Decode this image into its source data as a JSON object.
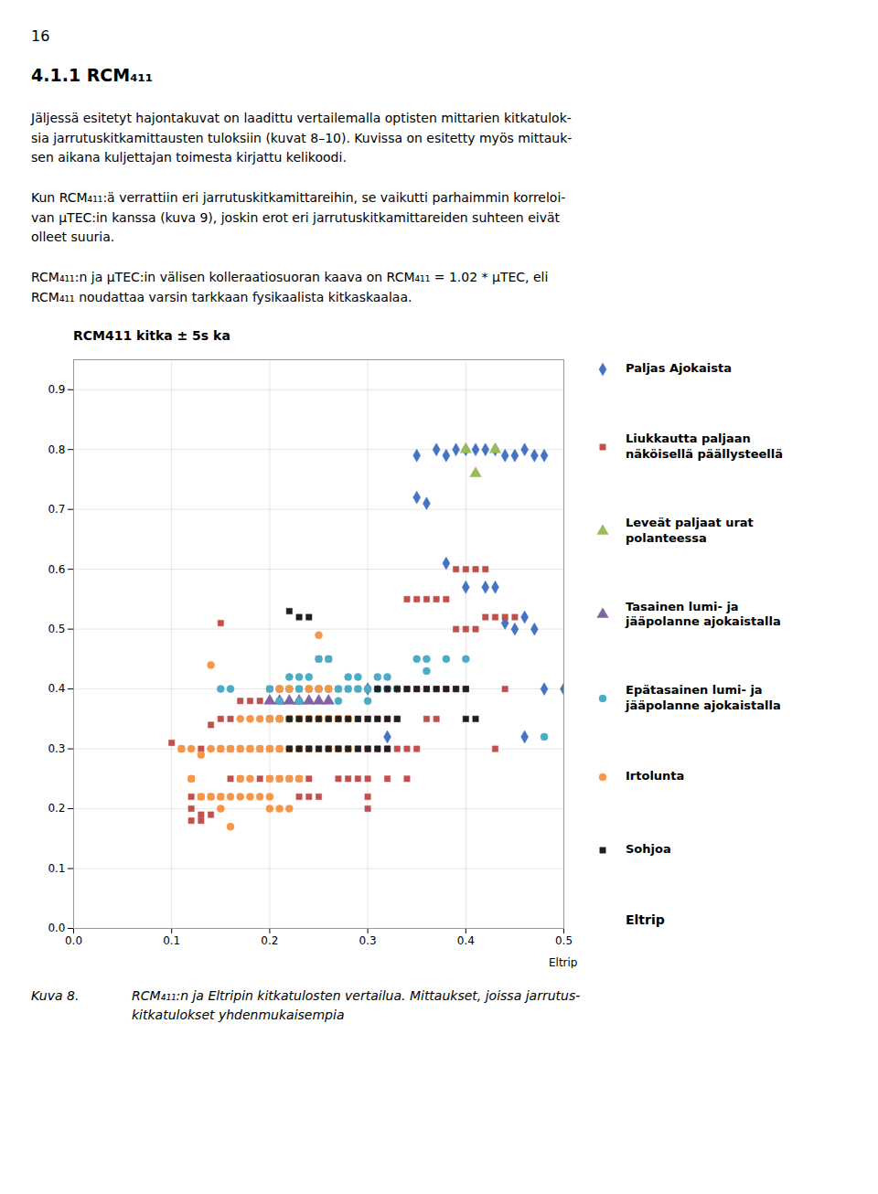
{
  "page": {
    "page_number": "16",
    "section_title": "4.1.1   RCM₄₁₁",
    "paragraphs": [
      "Jäljessä esitetyt hajontakuvat on laadittu vertailemalla optisten mittarien kitkatulok-\nsia jarrutuskitkamittausten tuloksiin (kuvat 8–10). Kuvissa on esitetty myös mittauk-\nsen aikana kuljettajan toimesta kirjattu kelikoodi.",
      "Kun RCM₄₁₁:ä verrattiin eri jarrutuskitkamittareihin, se vaikutti parhaimmin korreloi-\nvan μTEC:in kanssa (kuva 9), joskin erot eri jarrutuskitkamittareiden suhteen eivät\nolleet suuria.",
      "RCM₄₁₁:n ja μTEC:in välisen kolleraatiosuoran kaava on RCM₄₁₁ = 1.02 * μTEC, eli\nRCM₄₁₁ noudattaa varsin tarkkaan fysikaalista kitkaskaalaa."
    ],
    "caption_label": "Kuva 8.",
    "caption_text": "RCM₄₁₁:n  ja Eltripin kitkatulosten vertailua. Mittaukset, joissa jarrutus-\nkitkatulokset yhdenmukaisempia"
  },
  "chart_data": {
    "type": "scatter",
    "title": "RCM411 kitka ± 5s ka",
    "xlabel": "Eltrip",
    "xlim": [
      0,
      0.5
    ],
    "ylim": [
      0,
      0.95
    ],
    "xticks": [
      {
        "value": 0,
        "label": "0.0"
      },
      0.1,
      0.2,
      0.3,
      0.4,
      0.5
    ],
    "yticks": [
      {
        "value": 0,
        "label": "0.0"
      },
      0.1,
      0.2,
      0.3,
      0.4,
      0.5,
      0.6,
      0.7,
      0.8,
      0.9
    ],
    "grid": true,
    "legend": "right",
    "annotations": [
      "Eltrip"
    ],
    "series": [
      {
        "name": "Paljas Ajokaista",
        "color": "#4472C4",
        "marker": "diamond",
        "points": [
          [
            0.35,
            0.79
          ],
          [
            0.37,
            0.8
          ],
          [
            0.38,
            0.79
          ],
          [
            0.39,
            0.8
          ],
          [
            0.4,
            0.8
          ],
          [
            0.41,
            0.8
          ],
          [
            0.42,
            0.8
          ],
          [
            0.43,
            0.8
          ],
          [
            0.44,
            0.79
          ],
          [
            0.45,
            0.79
          ],
          [
            0.46,
            0.8
          ],
          [
            0.47,
            0.79
          ],
          [
            0.48,
            0.79
          ],
          [
            0.35,
            0.72
          ],
          [
            0.36,
            0.71
          ],
          [
            0.38,
            0.61
          ],
          [
            0.4,
            0.57
          ],
          [
            0.42,
            0.57
          ],
          [
            0.43,
            0.57
          ],
          [
            0.44,
            0.51
          ],
          [
            0.45,
            0.5
          ],
          [
            0.46,
            0.52
          ],
          [
            0.47,
            0.5
          ],
          [
            0.3,
            0.4
          ],
          [
            0.32,
            0.32
          ],
          [
            0.46,
            0.32
          ],
          [
            0.48,
            0.4
          ],
          [
            0.5,
            0.4
          ]
        ]
      },
      {
        "name": "Liukkautta paljaan\nnäköisellä päällysteellä",
        "color": "#C0504D",
        "marker": "square",
        "points": [
          [
            0.1,
            0.31
          ],
          [
            0.11,
            0.3
          ],
          [
            0.12,
            0.25
          ],
          [
            0.12,
            0.22
          ],
          [
            0.12,
            0.2
          ],
          [
            0.13,
            0.3
          ],
          [
            0.13,
            0.22
          ],
          [
            0.13,
            0.19
          ],
          [
            0.14,
            0.34
          ],
          [
            0.14,
            0.22
          ],
          [
            0.14,
            0.19
          ],
          [
            0.15,
            0.35
          ],
          [
            0.15,
            0.3
          ],
          [
            0.15,
            0.22
          ],
          [
            0.15,
            0.51
          ],
          [
            0.16,
            0.35
          ],
          [
            0.16,
            0.3
          ],
          [
            0.16,
            0.25
          ],
          [
            0.17,
            0.38
          ],
          [
            0.17,
            0.3
          ],
          [
            0.17,
            0.25
          ],
          [
            0.18,
            0.38
          ],
          [
            0.18,
            0.3
          ],
          [
            0.19,
            0.38
          ],
          [
            0.19,
            0.3
          ],
          [
            0.19,
            0.25
          ],
          [
            0.2,
            0.4
          ],
          [
            0.2,
            0.35
          ],
          [
            0.2,
            0.3
          ],
          [
            0.2,
            0.25
          ],
          [
            0.21,
            0.4
          ],
          [
            0.21,
            0.35
          ],
          [
            0.21,
            0.3
          ],
          [
            0.21,
            0.25
          ],
          [
            0.22,
            0.4
          ],
          [
            0.22,
            0.35
          ],
          [
            0.22,
            0.3
          ],
          [
            0.22,
            0.25
          ],
          [
            0.23,
            0.4
          ],
          [
            0.23,
            0.35
          ],
          [
            0.23,
            0.3
          ],
          [
            0.23,
            0.25
          ],
          [
            0.23,
            0.22
          ],
          [
            0.24,
            0.4
          ],
          [
            0.24,
            0.35
          ],
          [
            0.24,
            0.3
          ],
          [
            0.24,
            0.25
          ],
          [
            0.24,
            0.22
          ],
          [
            0.25,
            0.45
          ],
          [
            0.25,
            0.4
          ],
          [
            0.25,
            0.35
          ],
          [
            0.25,
            0.3
          ],
          [
            0.25,
            0.22
          ],
          [
            0.26,
            0.45
          ],
          [
            0.26,
            0.4
          ],
          [
            0.26,
            0.35
          ],
          [
            0.26,
            0.3
          ],
          [
            0.27,
            0.4
          ],
          [
            0.27,
            0.35
          ],
          [
            0.27,
            0.3
          ],
          [
            0.27,
            0.25
          ],
          [
            0.28,
            0.4
          ],
          [
            0.28,
            0.35
          ],
          [
            0.28,
            0.3
          ],
          [
            0.28,
            0.25
          ],
          [
            0.29,
            0.4
          ],
          [
            0.29,
            0.35
          ],
          [
            0.29,
            0.3
          ],
          [
            0.29,
            0.25
          ],
          [
            0.3,
            0.4
          ],
          [
            0.3,
            0.35
          ],
          [
            0.3,
            0.3
          ],
          [
            0.3,
            0.25
          ],
          [
            0.31,
            0.4
          ],
          [
            0.31,
            0.35
          ],
          [
            0.31,
            0.3
          ],
          [
            0.32,
            0.4
          ],
          [
            0.32,
            0.35
          ],
          [
            0.32,
            0.3
          ],
          [
            0.32,
            0.25
          ],
          [
            0.33,
            0.4
          ],
          [
            0.33,
            0.35
          ],
          [
            0.33,
            0.3
          ],
          [
            0.34,
            0.55
          ],
          [
            0.34,
            0.4
          ],
          [
            0.34,
            0.3
          ],
          [
            0.34,
            0.25
          ],
          [
            0.35,
            0.55
          ],
          [
            0.35,
            0.4
          ],
          [
            0.35,
            0.3
          ],
          [
            0.36,
            0.55
          ],
          [
            0.36,
            0.4
          ],
          [
            0.36,
            0.35
          ],
          [
            0.37,
            0.55
          ],
          [
            0.37,
            0.4
          ],
          [
            0.37,
            0.35
          ],
          [
            0.38,
            0.55
          ],
          [
            0.38,
            0.4
          ],
          [
            0.39,
            0.6
          ],
          [
            0.39,
            0.5
          ],
          [
            0.39,
            0.4
          ],
          [
            0.4,
            0.6
          ],
          [
            0.4,
            0.5
          ],
          [
            0.4,
            0.4
          ],
          [
            0.41,
            0.6
          ],
          [
            0.41,
            0.5
          ],
          [
            0.42,
            0.6
          ],
          [
            0.42,
            0.52
          ],
          [
            0.43,
            0.52
          ],
          [
            0.43,
            0.3
          ],
          [
            0.44,
            0.52
          ],
          [
            0.44,
            0.4
          ],
          [
            0.45,
            0.52
          ],
          [
            0.3,
            0.22
          ],
          [
            0.3,
            0.2
          ],
          [
            0.12,
            0.18
          ],
          [
            0.13,
            0.18
          ]
        ]
      },
      {
        "name": "Leveät paljaat urat\npolanteessa",
        "color": "#9BBB59",
        "marker": "triangle",
        "points": [
          [
            0.4,
            0.8
          ],
          [
            0.41,
            0.76
          ],
          [
            0.43,
            0.8
          ]
        ]
      },
      {
        "name": "Tasainen lumi- ja\njääpolanne ajokaistalla",
        "color": "#8064A2",
        "marker": "triangle",
        "points": [
          [
            0.2,
            0.38
          ],
          [
            0.21,
            0.38
          ],
          [
            0.22,
            0.38
          ],
          [
            0.23,
            0.38
          ],
          [
            0.24,
            0.38
          ],
          [
            0.25,
            0.38
          ],
          [
            0.26,
            0.38
          ]
        ]
      },
      {
        "name": "Epätasainen lumi- ja\njääpolanne ajokaistalla",
        "color": "#4BACC6",
        "marker": "circle",
        "points": [
          [
            0.2,
            0.4
          ],
          [
            0.21,
            0.4
          ],
          [
            0.21,
            0.38
          ],
          [
            0.22,
            0.42
          ],
          [
            0.22,
            0.4
          ],
          [
            0.23,
            0.42
          ],
          [
            0.23,
            0.4
          ],
          [
            0.23,
            0.38
          ],
          [
            0.24,
            0.42
          ],
          [
            0.24,
            0.4
          ],
          [
            0.25,
            0.45
          ],
          [
            0.25,
            0.4
          ],
          [
            0.26,
            0.45
          ],
          [
            0.26,
            0.4
          ],
          [
            0.27,
            0.4
          ],
          [
            0.27,
            0.38
          ],
          [
            0.28,
            0.42
          ],
          [
            0.28,
            0.4
          ],
          [
            0.29,
            0.42
          ],
          [
            0.29,
            0.4
          ],
          [
            0.3,
            0.4
          ],
          [
            0.3,
            0.38
          ],
          [
            0.31,
            0.42
          ],
          [
            0.31,
            0.4
          ],
          [
            0.32,
            0.42
          ],
          [
            0.32,
            0.4
          ],
          [
            0.33,
            0.4
          ],
          [
            0.35,
            0.45
          ],
          [
            0.36,
            0.45
          ],
          [
            0.36,
            0.43
          ],
          [
            0.38,
            0.45
          ],
          [
            0.4,
            0.45
          ],
          [
            0.2,
            0.35
          ],
          [
            0.21,
            0.35
          ],
          [
            0.22,
            0.35
          ],
          [
            0.15,
            0.4
          ],
          [
            0.16,
            0.4
          ],
          [
            0.48,
            0.32
          ]
        ]
      },
      {
        "name": "Irtolunta",
        "color": "#F79646",
        "marker": "circle",
        "points": [
          [
            0.12,
            0.3
          ],
          [
            0.13,
            0.29
          ],
          [
            0.13,
            0.22
          ],
          [
            0.14,
            0.44
          ],
          [
            0.14,
            0.3
          ],
          [
            0.14,
            0.22
          ],
          [
            0.15,
            0.3
          ],
          [
            0.15,
            0.22
          ],
          [
            0.15,
            0.2
          ],
          [
            0.16,
            0.3
          ],
          [
            0.16,
            0.22
          ],
          [
            0.16,
            0.17
          ],
          [
            0.17,
            0.35
          ],
          [
            0.17,
            0.3
          ],
          [
            0.17,
            0.25
          ],
          [
            0.17,
            0.22
          ],
          [
            0.18,
            0.35
          ],
          [
            0.18,
            0.3
          ],
          [
            0.18,
            0.25
          ],
          [
            0.18,
            0.22
          ],
          [
            0.19,
            0.35
          ],
          [
            0.19,
            0.3
          ],
          [
            0.19,
            0.22
          ],
          [
            0.2,
            0.35
          ],
          [
            0.2,
            0.3
          ],
          [
            0.2,
            0.25
          ],
          [
            0.2,
            0.22
          ],
          [
            0.21,
            0.4
          ],
          [
            0.21,
            0.35
          ],
          [
            0.21,
            0.3
          ],
          [
            0.21,
            0.25
          ],
          [
            0.22,
            0.4
          ],
          [
            0.22,
            0.35
          ],
          [
            0.22,
            0.3
          ],
          [
            0.22,
            0.25
          ],
          [
            0.23,
            0.35
          ],
          [
            0.23,
            0.3
          ],
          [
            0.23,
            0.25
          ],
          [
            0.24,
            0.4
          ],
          [
            0.24,
            0.35
          ],
          [
            0.24,
            0.3
          ],
          [
            0.25,
            0.49
          ],
          [
            0.25,
            0.4
          ],
          [
            0.25,
            0.35
          ],
          [
            0.26,
            0.4
          ],
          [
            0.26,
            0.35
          ],
          [
            0.26,
            0.3
          ],
          [
            0.27,
            0.35
          ],
          [
            0.27,
            0.3
          ],
          [
            0.28,
            0.35
          ],
          [
            0.28,
            0.3
          ],
          [
            0.2,
            0.2
          ],
          [
            0.21,
            0.2
          ],
          [
            0.22,
            0.2
          ],
          [
            0.11,
            0.3
          ],
          [
            0.12,
            0.25
          ]
        ]
      },
      {
        "name": "Sohjoa",
        "color": "#1F1F1F",
        "marker": "square",
        "points": [
          [
            0.22,
            0.35
          ],
          [
            0.23,
            0.35
          ],
          [
            0.24,
            0.35
          ],
          [
            0.25,
            0.35
          ],
          [
            0.26,
            0.35
          ],
          [
            0.27,
            0.35
          ],
          [
            0.28,
            0.35
          ],
          [
            0.29,
            0.35
          ],
          [
            0.3,
            0.35
          ],
          [
            0.31,
            0.35
          ],
          [
            0.32,
            0.35
          ],
          [
            0.33,
            0.35
          ],
          [
            0.22,
            0.3
          ],
          [
            0.23,
            0.3
          ],
          [
            0.24,
            0.3
          ],
          [
            0.25,
            0.3
          ],
          [
            0.26,
            0.3
          ],
          [
            0.27,
            0.3
          ],
          [
            0.28,
            0.3
          ],
          [
            0.29,
            0.3
          ],
          [
            0.3,
            0.3
          ],
          [
            0.31,
            0.3
          ],
          [
            0.32,
            0.3
          ],
          [
            0.22,
            0.53
          ],
          [
            0.23,
            0.52
          ],
          [
            0.24,
            0.52
          ],
          [
            0.31,
            0.4
          ],
          [
            0.32,
            0.4
          ],
          [
            0.33,
            0.4
          ],
          [
            0.34,
            0.4
          ],
          [
            0.35,
            0.4
          ],
          [
            0.36,
            0.4
          ],
          [
            0.37,
            0.4
          ],
          [
            0.38,
            0.4
          ],
          [
            0.39,
            0.4
          ],
          [
            0.4,
            0.4
          ],
          [
            0.4,
            0.35
          ],
          [
            0.41,
            0.35
          ]
        ]
      }
    ]
  }
}
